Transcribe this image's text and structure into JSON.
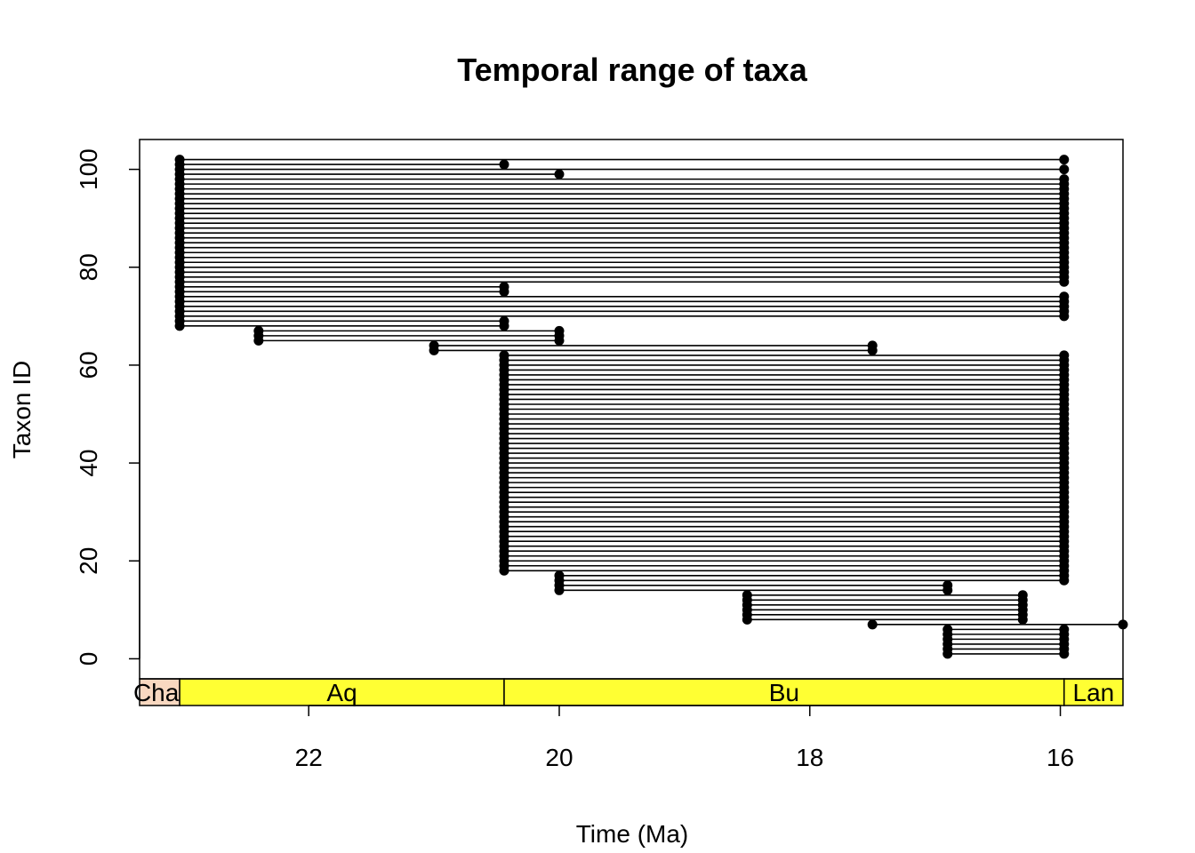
{
  "chart_data": {
    "type": "range",
    "title": "Temporal range of taxa",
    "xlabel": "Time (Ma)",
    "ylabel": "Taxon ID",
    "x_reversed": true,
    "xlim": [
      23.35,
      15.5
    ],
    "ylim": [
      -4.1,
      106.1
    ],
    "x_ticks": [
      22,
      20,
      18,
      16
    ],
    "y_ticks": [
      0,
      20,
      40,
      60,
      80,
      100
    ],
    "grid": false,
    "point_color": "#000000",
    "line_color": "#000000",
    "stages": [
      {
        "name": "Chat",
        "start": 23.35,
        "end": 23.03,
        "color": "#F9D8C0"
      },
      {
        "name": "Aq",
        "start": 23.03,
        "end": 20.44,
        "color": "#FFFF33"
      },
      {
        "name": "Bu",
        "start": 20.44,
        "end": 15.97,
        "color": "#FFFF33"
      },
      {
        "name": "Lan",
        "start": 15.97,
        "end": 15.5,
        "color": "#FFFF33"
      }
    ],
    "range_groups": [
      {
        "ids": [
          1,
          6
        ],
        "start": 16.9,
        "end": 15.97
      },
      {
        "ids": [
          7,
          7
        ],
        "start": 17.5,
        "end": 15.5
      },
      {
        "ids": [
          8,
          13
        ],
        "start": 18.5,
        "end": 16.3
      },
      {
        "ids": [
          14,
          15
        ],
        "start": 20.0,
        "end": 16.9
      },
      {
        "ids": [
          16,
          17
        ],
        "start": 20.0,
        "end": 15.97
      },
      {
        "ids": [
          18,
          62
        ],
        "start": 20.44,
        "end": 15.97
      },
      {
        "ids": [
          63,
          64
        ],
        "start": 21.0,
        "end": 17.5
      },
      {
        "ids": [
          65,
          67
        ],
        "start": 22.4,
        "end": 20.0
      },
      {
        "ids": [
          68,
          69
        ],
        "start": 23.03,
        "end": 20.44
      },
      {
        "ids": [
          70,
          74
        ],
        "start": 23.03,
        "end": 15.97
      },
      {
        "ids": [
          75,
          76
        ],
        "start": 23.03,
        "end": 20.44
      },
      {
        "ids": [
          77,
          98
        ],
        "start": 23.03,
        "end": 15.97
      },
      {
        "ids": [
          99,
          99
        ],
        "start": 23.03,
        "end": 20.0
      },
      {
        "ids": [
          100,
          100
        ],
        "start": 23.03,
        "end": 15.97
      },
      {
        "ids": [
          101,
          101
        ],
        "start": 23.03,
        "end": 20.44
      },
      {
        "ids": [
          102,
          102
        ],
        "start": 23.03,
        "end": 15.97
      }
    ]
  }
}
